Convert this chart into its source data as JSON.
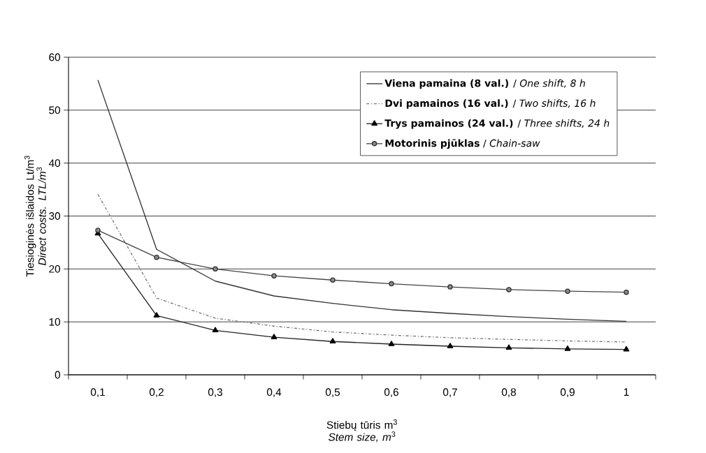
{
  "chart_data": {
    "type": "line",
    "xlabel": "Stiebų tūris m$^{3}$ *Stem size, m*$^{3}$",
    "ylabel": "Tiesioginės išlaidos Lt/m$^{3}$ *Direct costs. LTL/m*$^{3}$",
    "categories": [
      "0,1",
      "0,2",
      "0,3",
      "0,4",
      "0,5",
      "0,6",
      "0,7",
      "0,8",
      "0,9",
      "1"
    ],
    "series": [
      {
        "name": "**Viena pamaina (8 val.)** / *One shift, 8 h*",
        "color": "#333333",
        "line_style": "solid",
        "marker": "none",
        "values": [
          55.7,
          23.7,
          17.7,
          14.9,
          13.5,
          12.3,
          11.6,
          11.0,
          10.5,
          10.1
        ]
      },
      {
        "name": "**Dvi pamainos (16 val.)** / *Two shifts, 16 h*",
        "color": "#777777",
        "line_style": "dashdot",
        "marker": "none",
        "values": [
          34.1,
          14.5,
          10.7,
          9.2,
          8.1,
          7.5,
          7.0,
          6.7,
          6.4,
          6.2
        ]
      },
      {
        "name": "**Trys pamainos (24 val.)** / *Three shifts, 24 h*",
        "color": "#222222",
        "line_style": "solid",
        "marker": "triangle",
        "values": [
          26.7,
          11.2,
          8.4,
          7.1,
          6.3,
          5.8,
          5.4,
          5.1,
          4.9,
          4.8
        ]
      },
      {
        "name": "**Motorinis pjūklas** / *Chain-saw*",
        "color": "#444444",
        "line_style": "solid",
        "marker": "circle",
        "values": [
          27.3,
          22.2,
          20.0,
          18.7,
          17.9,
          17.2,
          16.6,
          16.1,
          15.8,
          15.6
        ]
      }
    ],
    "ylim": [
      0,
      60
    ],
    "yticks": [
      0,
      10,
      20,
      30,
      40,
      50,
      60
    ],
    "grid": "y",
    "legend": "top right"
  }
}
